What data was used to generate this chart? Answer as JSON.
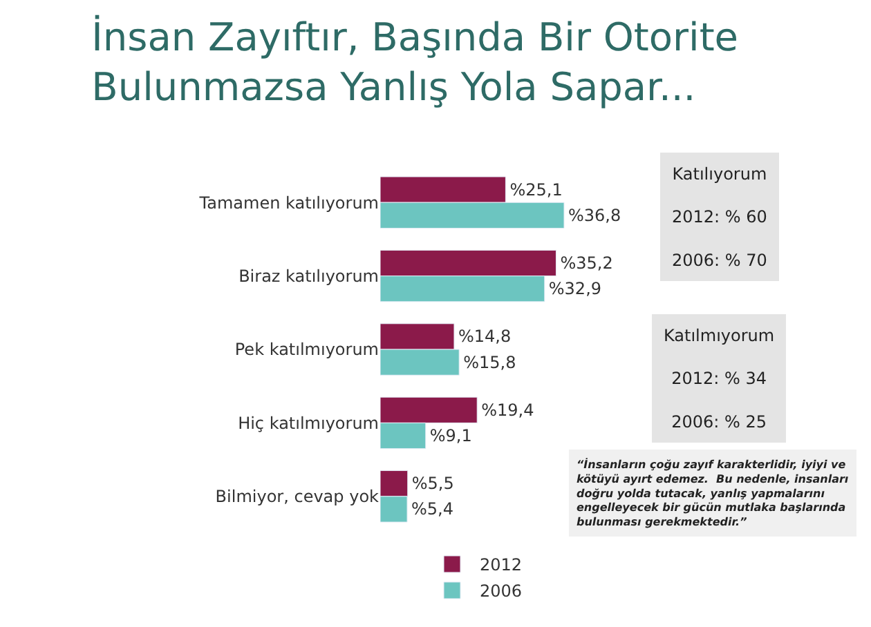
{
  "chart_data": {
    "type": "bar",
    "orientation": "horizontal",
    "title": "İnsan Zayıftır, Başında Bir Otorite\nBulunmazsa Yanlış Yola Sapar...",
    "categories": [
      "Tamamen katılıyorum",
      "Biraz katılıyorum",
      "Pek katılmıyorum",
      "Hiç katılmıyorum",
      "Bilmiyor, cevap yok"
    ],
    "series": [
      {
        "name": "2012",
        "color": "#8b1a4a",
        "values": [
          25.1,
          35.2,
          14.8,
          19.4,
          5.5
        ],
        "value_labels": [
          "%25,1",
          "%35,2",
          "%14,8",
          "%19,4",
          "%5,5"
        ]
      },
      {
        "name": "2006",
        "color": "#6cc5c0",
        "values": [
          36.8,
          32.9,
          15.8,
          9.1,
          5.4
        ],
        "value_labels": [
          "%36,8",
          "%32,9",
          "%15,8",
          "%9,1",
          "%5,4"
        ]
      }
    ],
    "legend": "bottom",
    "annotations": [
      "Katılıyorum\n2012: % 60\n2006: % 70",
      "Katılmıyorum\n2012: % 34\n2006: % 25",
      "“İnsanların çoğu zayıf karakterlidir, iyiyi ve\nkötüyü ayırt edemez.  Bu nedenle, insanları\ndoğru yolda tutacak, yanlış yapmalarını\nengelleyecek bir gücün mutlaka başlarında\nbulunması gerekmektedir.”"
    ]
  }
}
